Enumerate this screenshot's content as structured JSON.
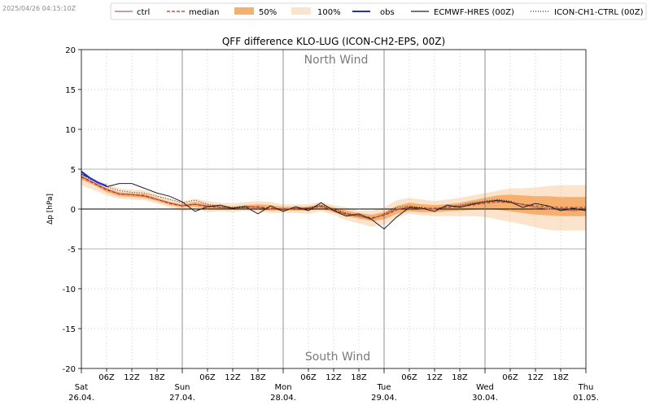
{
  "timestamp": "2025/04/26 04:15:10Z",
  "legend": [
    {
      "key": "ctrl",
      "label": "ctrl",
      "style": "line",
      "color": "#b06060",
      "dash": ""
    },
    {
      "key": "median",
      "label": "median",
      "style": "line",
      "color": "#b03020",
      "dash": "4,2"
    },
    {
      "key": "p50",
      "label": "50%",
      "style": "patch",
      "color": "#f5b070"
    },
    {
      "key": "p100",
      "label": "100%",
      "style": "patch",
      "color": "#fbe3cc"
    },
    {
      "key": "obs",
      "label": "obs",
      "style": "line",
      "color": "#1f2fd6",
      "dash": ""
    },
    {
      "key": "ecmwf",
      "label": "ECMWF-HRES (00Z)",
      "style": "line",
      "color": "#222222",
      "dash": ""
    },
    {
      "key": "ich1",
      "label": "ICON-CH1-CTRL (00Z)",
      "style": "line",
      "color": "#333333",
      "dash": "1,2"
    }
  ],
  "chart_data": {
    "type": "line",
    "title": "QFF difference KLO-LUG (ICON-CH2-EPS, 00Z)",
    "ylabel": "Δp [hPa]",
    "xlabel": "",
    "ylim": [
      -20,
      20
    ],
    "yticks": [
      -20,
      -15,
      -10,
      -5,
      0,
      5,
      10,
      15,
      20
    ],
    "xlim_hours": [
      0,
      120
    ],
    "annotations": {
      "top": "North Wind",
      "bottom": "South Wind"
    },
    "grid": "dotted",
    "legend_position": "top",
    "day_labels": [
      {
        "h": 0,
        "day": "Sat",
        "date": "26.04."
      },
      {
        "h": 24,
        "day": "Sun",
        "date": "27.04."
      },
      {
        "h": 48,
        "day": "Mon",
        "date": "28.04."
      },
      {
        "h": 72,
        "day": "Tue",
        "date": "29.04."
      },
      {
        "h": 96,
        "day": "Wed",
        "date": "30.04."
      },
      {
        "h": 120,
        "day": "Thu",
        "date": "01.05."
      }
    ],
    "hour_labels": [
      "06Z",
      "12Z",
      "18Z"
    ],
    "x_hours": [
      0,
      3,
      6,
      9,
      12,
      15,
      18,
      21,
      24,
      27,
      30,
      33,
      36,
      39,
      42,
      45,
      48,
      51,
      54,
      57,
      60,
      63,
      66,
      69,
      72,
      75,
      78,
      81,
      84,
      87,
      90,
      93,
      96,
      99,
      102,
      105,
      108,
      111,
      114,
      117,
      120
    ],
    "band_100_low": [
      3.0,
      2.4,
      1.7,
      1.3,
      1.2,
      1.1,
      0.7,
      0.2,
      -0.3,
      0.0,
      -0.4,
      -0.3,
      -0.4,
      -0.2,
      -0.4,
      -0.5,
      -0.5,
      -0.5,
      -0.6,
      -0.3,
      -0.7,
      -1.4,
      -1.8,
      -2.2,
      -2.0,
      -1.1,
      -0.6,
      -0.8,
      -0.9,
      -0.9,
      -0.9,
      -0.9,
      -1.0,
      -1.3,
      -1.6,
      -1.9,
      -2.3,
      -2.6,
      -2.7,
      -2.7,
      -2.7
    ],
    "band_100_high": [
      4.6,
      3.8,
      3.2,
      2.6,
      2.4,
      2.4,
      1.8,
      1.3,
      0.9,
      1.3,
      1.0,
      0.8,
      0.7,
      0.9,
      1.0,
      0.9,
      0.6,
      0.6,
      0.6,
      0.9,
      0.5,
      0.2,
      -0.2,
      -0.2,
      0.2,
      1.1,
      1.4,
      1.2,
      1.0,
      1.2,
      1.4,
      1.7,
      2.0,
      2.3,
      2.6,
      2.6,
      2.7,
      2.9,
      3.0,
      3.0,
      3.0
    ],
    "band_50_low": [
      3.7,
      3.0,
      2.1,
      1.6,
      1.5,
      1.4,
      1.0,
      0.5,
      0.2,
      0.3,
      0.0,
      0.0,
      -0.1,
      0.0,
      -0.1,
      -0.2,
      -0.2,
      -0.2,
      -0.2,
      0.0,
      -0.4,
      -0.9,
      -1.2,
      -1.5,
      -1.3,
      -0.6,
      -0.3,
      -0.4,
      -0.4,
      -0.3,
      -0.2,
      -0.1,
      0.0,
      -0.1,
      -0.3,
      -0.5,
      -0.7,
      -0.8,
      -0.9,
      -0.9,
      -0.9
    ],
    "band_50_high": [
      4.2,
      3.4,
      2.6,
      2.1,
      2.0,
      1.9,
      1.4,
      0.9,
      0.6,
      0.9,
      0.6,
      0.5,
      0.3,
      0.5,
      0.6,
      0.5,
      0.3,
      0.3,
      0.3,
      0.6,
      0.2,
      -0.2,
      -0.5,
      -0.7,
      -0.4,
      0.4,
      0.8,
      0.6,
      0.5,
      0.6,
      0.8,
      1.1,
      1.4,
      1.7,
      1.8,
      1.7,
      1.6,
      1.6,
      1.5,
      1.5,
      1.5
    ],
    "series": [
      {
        "key": "median",
        "values": [
          4.0,
          3.2,
          2.4,
          1.9,
          1.8,
          1.7,
          1.2,
          0.7,
          0.4,
          0.6,
          0.3,
          0.2,
          0.1,
          0.2,
          0.3,
          0.1,
          0.0,
          0.0,
          0.1,
          0.3,
          -0.1,
          -0.6,
          -0.8,
          -1.1,
          -0.8,
          -0.1,
          0.3,
          0.1,
          0.1,
          0.2,
          0.3,
          0.5,
          0.7,
          0.9,
          0.8,
          0.6,
          0.4,
          0.3,
          0.2,
          0.2,
          0.2
        ]
      },
      {
        "key": "ctrl",
        "values": [
          4.1,
          3.3,
          2.5,
          1.9,
          1.8,
          1.6,
          1.2,
          0.8,
          0.4,
          0.6,
          0.4,
          0.2,
          0.1,
          0.3,
          0.2,
          0.0,
          -0.1,
          0.1,
          0.1,
          0.4,
          -0.2,
          -0.7,
          -0.9,
          -1.2,
          -0.7,
          0.0,
          0.2,
          0.0,
          0.0,
          0.3,
          0.4,
          0.7,
          0.9,
          1.0,
          0.8,
          0.6,
          0.2,
          0.0,
          -0.1,
          -0.2,
          -0.1
        ]
      },
      {
        "key": "ich1",
        "values": [
          4.3,
          3.5,
          2.8,
          2.3,
          2.1,
          2.0,
          1.6,
          1.2,
          0.8,
          1.1,
          0.6,
          0.3,
          0.2,
          0.4,
          0.2,
          0.0,
          0.0,
          0.0,
          0.2,
          0.5,
          0.0,
          -0.5,
          -0.9,
          -1.3,
          -0.6,
          0.2,
          0.4,
          0.2,
          0.0,
          0.3,
          0.5,
          0.8,
          1.0,
          1.2,
          1.0,
          0.5,
          0.2,
          0.1,
          0.0,
          -0.1,
          0.0
        ]
      },
      {
        "key": "ecmwf",
        "values": [
          4.4,
          3.6,
          2.8,
          3.2,
          3.2,
          2.6,
          2.0,
          1.6,
          0.9,
          -0.3,
          0.3,
          0.5,
          0.1,
          0.3,
          -0.6,
          0.4,
          -0.3,
          0.3,
          -0.2,
          0.8,
          -0.2,
          -0.9,
          -0.6,
          -1.3,
          -2.5,
          -1.0,
          0.2,
          0.1,
          -0.3,
          0.5,
          0.2,
          0.6,
          0.9,
          1.1,
          0.9,
          0.2,
          0.7,
          0.4,
          -0.2,
          0.1,
          -0.2
        ]
      },
      {
        "key": "obs",
        "x": [
          0,
          1,
          2,
          3,
          4,
          5,
          6
        ],
        "values": [
          4.7,
          4.3,
          3.9,
          3.6,
          3.3,
          3.1,
          2.9
        ]
      }
    ]
  }
}
